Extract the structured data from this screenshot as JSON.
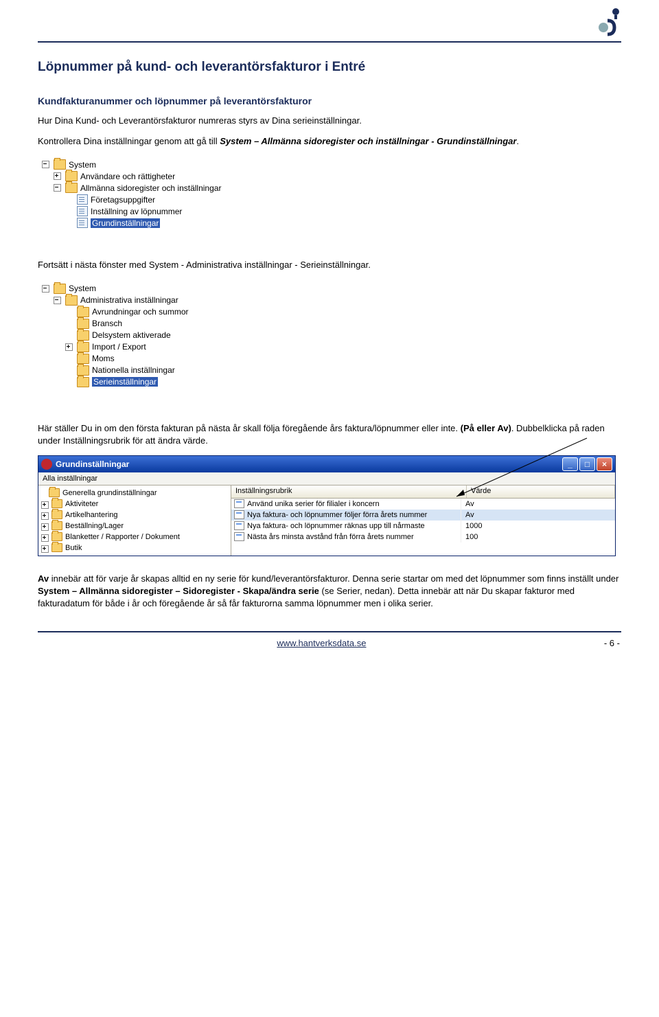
{
  "logo_colors": {
    "top": "#1b2c5a",
    "bottom": "#8aa9b0"
  },
  "heading": "Löpnummer på kund- och leverantörsfakturor i Entré",
  "subheading": "Kundfakturanummer och löpnummer på leverantörsfakturor",
  "para1": "Hur Dina Kund- och Leverantörsfakturor numreras styrs av Dina serieinställningar.",
  "para2a": "Kontrollera Dina inställningar genom att gå till ",
  "para2b": "System – Allmänna sidoregister och inställningar - Grundinställningar",
  "para2c": ".",
  "tree1": [
    {
      "indent": 0,
      "toggle": "minus",
      "icon": "folder",
      "label": "System",
      "selected": false
    },
    {
      "indent": 1,
      "toggle": "plus",
      "icon": "folder",
      "label": "Användare och rättigheter",
      "selected": false
    },
    {
      "indent": 1,
      "toggle": "minus",
      "icon": "folder",
      "label": "Allmänna sidoregister och inställningar",
      "selected": false
    },
    {
      "indent": 2,
      "toggle": "none",
      "icon": "file",
      "label": "Företagsuppgifter",
      "selected": false
    },
    {
      "indent": 2,
      "toggle": "none",
      "icon": "file",
      "label": "Inställning av löpnummer",
      "selected": false
    },
    {
      "indent": 2,
      "toggle": "none",
      "icon": "file",
      "label": "Grundinställningar",
      "selected": true
    }
  ],
  "para3": "Fortsätt i nästa fönster med System - Administrativa inställningar - Serieinställningar.",
  "tree2": [
    {
      "indent": 0,
      "toggle": "minus",
      "icon": "folder",
      "label": "System",
      "selected": false
    },
    {
      "indent": 1,
      "toggle": "minus",
      "icon": "folder",
      "label": "Administrativa inställningar",
      "selected": false
    },
    {
      "indent": 2,
      "toggle": "none",
      "icon": "folder",
      "label": "Avrundningar och summor",
      "selected": false
    },
    {
      "indent": 2,
      "toggle": "none",
      "icon": "folder",
      "label": "Bransch",
      "selected": false
    },
    {
      "indent": 2,
      "toggle": "none",
      "icon": "folder",
      "label": "Delsystem aktiverade",
      "selected": false
    },
    {
      "indent": 2,
      "toggle": "plus",
      "icon": "folder",
      "label": "Import / Export",
      "selected": false
    },
    {
      "indent": 2,
      "toggle": "none",
      "icon": "folder",
      "label": "Moms",
      "selected": false
    },
    {
      "indent": 2,
      "toggle": "none",
      "icon": "folder",
      "label": "Nationella inställningar",
      "selected": false
    },
    {
      "indent": 2,
      "toggle": "none",
      "icon": "folder",
      "label": "Serieinställningar",
      "selected": true
    }
  ],
  "para4a": "Här ställer Du in om den första fakturan på nästa år skall följa föregående års faktura/löpnummer eller inte. ",
  "para4b": "(På eller Av)",
  "para4c": ". Dubbelklicka på raden under Inställningsrubrik för att ändra värde.",
  "window": {
    "title": "Grundinställningar",
    "tab": "Alla inställningar",
    "side_items": [
      {
        "toggle": "none",
        "label": "Generella grundinställningar"
      },
      {
        "toggle": "plus",
        "label": "Aktiviteter"
      },
      {
        "toggle": "plus",
        "label": "Artikelhantering"
      },
      {
        "toggle": "plus",
        "label": "Beställning/Lager"
      },
      {
        "toggle": "plus",
        "label": "Blanketter / Rapporter / Dokument"
      },
      {
        "toggle": "plus",
        "label": "Butik"
      }
    ],
    "columns": [
      "Inställningsrubrik",
      "Värde"
    ],
    "rows": [
      {
        "label": "Använd unika serier för filialer i koncern",
        "value": "Av",
        "selected": false
      },
      {
        "label": "Nya faktura- och löpnummer följer förra årets nummer",
        "value": "Av",
        "selected": true
      },
      {
        "label": "Nya faktura- och löpnummer räknas upp till nårmaste",
        "value": "1000",
        "selected": false
      },
      {
        "label": "Nästa års minsta avstånd från förra årets nummer",
        "value": "100",
        "selected": false
      }
    ]
  },
  "para5a": "Av",
  "para5b": " innebär att för varje år skapas alltid en ny serie för kund/leverantörsfakturor. Denna serie startar om med det löpnummer som finns inställt under ",
  "para5c": "System – Allmänna sidoregister – Sidoregister - Skapa/ändra serie",
  "para5d": " (se Serier, nedan). Detta innebär att när Du skapar fakturor med fakturadatum för både i år och föregående år så får fakturorna samma löpnummer men i olika serier.",
  "footer_url": "www.hantverksdata.se",
  "footer_page": "- 6 -"
}
